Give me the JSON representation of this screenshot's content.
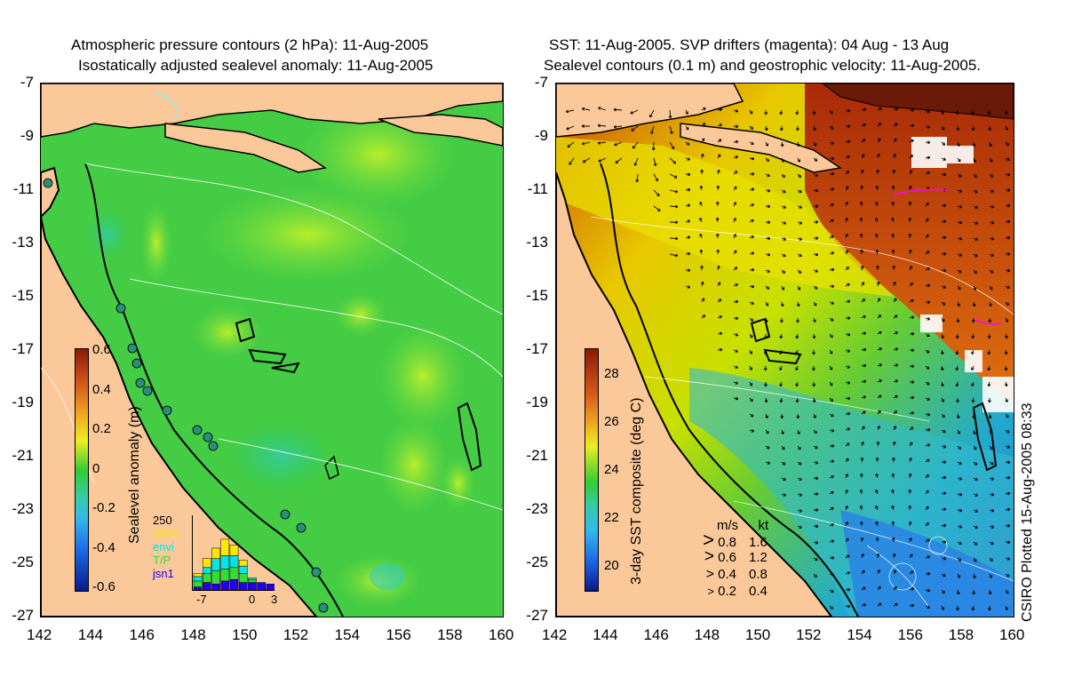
{
  "left": {
    "title_line1": "Atmospheric pressure contours (2 hPa): 11-Aug-2005",
    "title_line2": "Isostatically adjusted sealevel anomaly: 11-Aug-2005",
    "colorbar": {
      "label": "Sealevel anomaly (m)",
      "ticks": [
        "0.6",
        "0.4",
        "0.2",
        "0",
        "-0.2",
        "-0.4",
        "-0.6"
      ]
    },
    "mini_hist": {
      "ymax_label": "250",
      "legend": [
        "GFO",
        "envi",
        "T/P",
        "jsn1"
      ],
      "legend_colors": [
        "#ffe600",
        "#00e5e5",
        "#33dd33",
        "#2200ee"
      ],
      "xticks": [
        "-7",
        "0",
        "3"
      ],
      "bars": [
        {
          "jsn1": 10,
          "tp": 20,
          "envi": 15,
          "gfo": 10
        },
        {
          "jsn1": 25,
          "tp": 30,
          "envi": 20,
          "gfo": 30
        },
        {
          "jsn1": 20,
          "tp": 45,
          "envi": 40,
          "gfo": 35
        },
        {
          "jsn1": 30,
          "tp": 40,
          "envi": 45,
          "gfo": 55
        },
        {
          "jsn1": 35,
          "tp": 40,
          "envi": 40,
          "gfo": 35
        },
        {
          "jsn1": 25,
          "tp": 30,
          "envi": 25,
          "gfo": 20
        },
        {
          "jsn1": 25,
          "tp": 10,
          "envi": 5,
          "gfo": 0
        },
        {
          "jsn1": 25,
          "tp": 0,
          "envi": 0,
          "gfo": 0
        },
        {
          "jsn1": 20,
          "tp": 0,
          "envi": 0,
          "gfo": 0
        }
      ]
    }
  },
  "right": {
    "title_line1": "SST: 11-Aug-2005. SVP drifters (magenta): 04 Aug - 13 Aug",
    "title_line2": "Sealevel contours (0.1 m) and geostrophic velocity: 11-Aug-2005.",
    "colorbar": {
      "label": "3-day SST composite (deg C)",
      "ticks": [
        "28",
        "26",
        "24",
        "22",
        "20"
      ]
    },
    "velocity_legend": {
      "header_ms": "m/s",
      "header_kt": "kt",
      "rows": [
        {
          "ms": "0.8",
          "kt": "1.6"
        },
        {
          "ms": "0.6",
          "kt": "1.2"
        },
        {
          "ms": "0.4",
          "kt": "0.8"
        },
        {
          "ms": "0.2",
          "kt": "0.4"
        }
      ]
    },
    "plotted_note": "CSIRO Plotted 15-Aug-2005 08:33"
  },
  "axes": {
    "y_ticks": [
      "-7",
      "-9",
      "-11",
      "-13",
      "-15",
      "-17",
      "-19",
      "-21",
      "-23",
      "-25",
      "-27"
    ],
    "x_ticks": [
      "142",
      "144",
      "146",
      "148",
      "150",
      "152",
      "154",
      "156",
      "158",
      "160"
    ]
  },
  "colors": {
    "land": "#fbc999",
    "ocean_green": "#33cc33",
    "ocean_light": "#66dd44",
    "sst_warm": "#d85a0a",
    "sst_hot": "#a82a08",
    "sst_yellow": "#e6e000",
    "sst_cool": "#2a9ee0"
  }
}
